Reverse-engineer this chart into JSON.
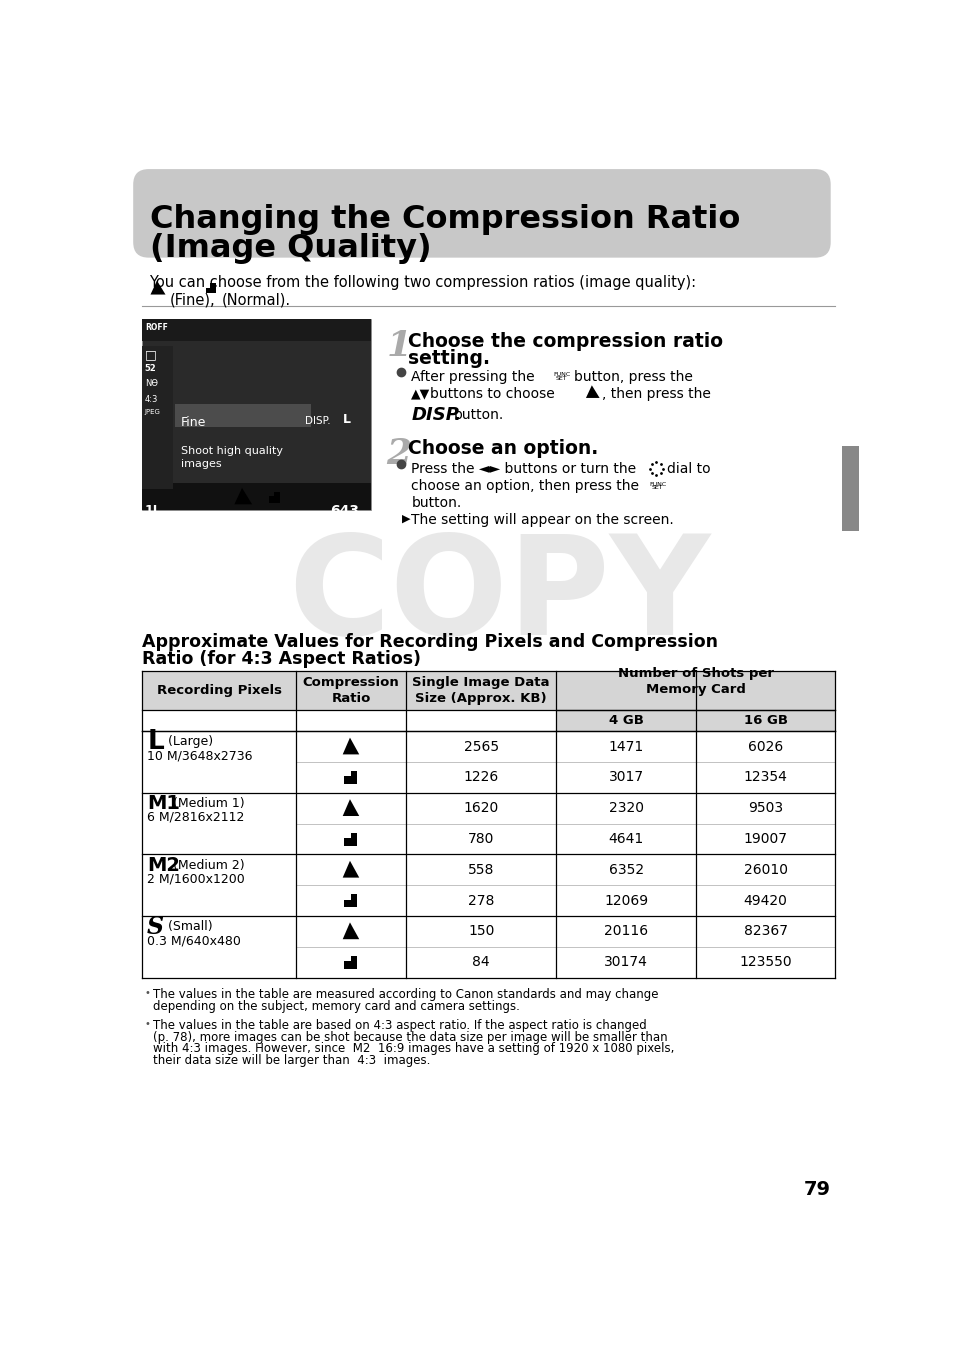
{
  "title_line1": "Changing the Compression Ratio",
  "title_line2": "(Image Quality)",
  "title_bg": "#c8c8c8",
  "page_bg": "#ffffff",
  "intro_text": "You can choose from the following two compression ratios (image quality):",
  "step1_title_line1": "Choose the compression ratio",
  "step1_title_line2": "setting.",
  "step2_title": "Choose an option.",
  "table_title_line1": "Approximate Values for Recording Pixels and Compression",
  "table_title_line2": "Ratio (for 4:3 Aspect Ratios)",
  "note1_line1": "The values in the table are measured according to Canon standards and may change",
  "note1_line2": "depending on the subject, memory card and camera settings.",
  "note2_line1": "The values in the table are based on 4:3 aspect ratio. If the aspect ratio is changed",
  "note2_line2": "(p. 78), more images can be shot because the data size per image will be smaller than",
  "note2_line3": "with 4:3 images. However, since  M2  16:9 images have a setting of 1920 x 1080 pixels,",
  "note2_line4": "their data size will be larger than  4:3  images.",
  "page_number": "79",
  "copy_watermark": "COPY",
  "groups": [
    {
      "bold": "L",
      "label_small": " (Large)",
      "sub": "10 M/3648x2736",
      "rows": [
        {
          "comp": "fine",
          "size": "2565",
          "gb4": "1471",
          "gb16": "6026"
        },
        {
          "comp": "normal",
          "size": "1226",
          "gb4": "3017",
          "gb16": "12354"
        }
      ]
    },
    {
      "bold": "M1",
      "label_small": " (Medium 1)",
      "sub": "6 M/2816x2112",
      "rows": [
        {
          "comp": "fine",
          "size": "1620",
          "gb4": "2320",
          "gb16": "9503"
        },
        {
          "comp": "normal",
          "size": "780",
          "gb4": "4641",
          "gb16": "19007"
        }
      ]
    },
    {
      "bold": "M2",
      "label_small": " (Medium 2)",
      "sub": "2 M/1600x1200",
      "rows": [
        {
          "comp": "fine",
          "size": "558",
          "gb4": "6352",
          "gb16": "26010"
        },
        {
          "comp": "normal",
          "size": "278",
          "gb4": "12069",
          "gb16": "49420"
        }
      ]
    },
    {
      "bold": "S",
      "label_small": "  (Small)",
      "sub": "0.3 M/640x480",
      "rows": [
        {
          "comp": "fine",
          "size": "150",
          "gb4": "20116",
          "gb16": "82367"
        },
        {
          "comp": "normal",
          "size": "84",
          "gb4": "30174",
          "gb16": "123550"
        }
      ]
    }
  ]
}
